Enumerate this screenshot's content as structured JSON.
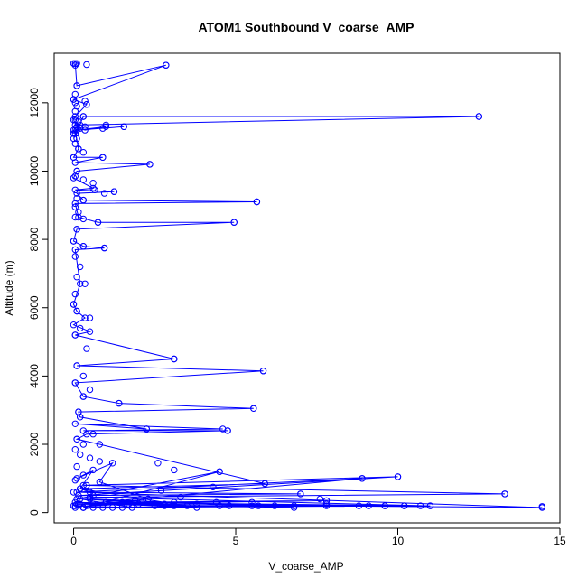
{
  "chart_data": {
    "type": "line",
    "title": "ATOM1 Southbound V_coarse_AMP",
    "xlabel": "V_coarse_AMP",
    "ylabel": "Altitude (m)",
    "xlim": [
      -0.6,
      15.0
    ],
    "ylim": [
      -300,
      13450
    ],
    "x_ticks": [
      0,
      5,
      10,
      15
    ],
    "x_tick_labels": [
      "0",
      "5",
      "10",
      "15"
    ],
    "y_ticks": [
      0,
      2000,
      4000,
      6000,
      8000,
      10000,
      12000
    ],
    "y_tick_labels": [
      "0",
      "2000",
      "4000",
      "6000",
      "8000",
      "10000",
      "12000"
    ],
    "grid": false,
    "legend": "none",
    "color": "#0000ff",
    "series": [
      {
        "x": [
          0.05,
          0.1,
          2.85,
          0.0,
          0.4,
          0.05,
          0.0,
          0.1,
          0.0,
          0.05,
          0.0,
          0.3,
          12.5,
          0.05,
          0.2,
          0.35,
          1.0,
          0.1,
          1.55,
          0.05,
          0.15,
          0.0,
          0.9,
          0.05,
          2.35,
          0.1,
          0.0,
          0.6,
          0.05,
          1.25,
          0.1,
          0.3,
          5.65,
          0.05,
          0.15,
          0.75,
          4.95,
          0.1,
          0.0,
          0.3,
          0.95,
          0.05,
          0.2,
          0.0,
          0.1,
          0.35,
          0.0,
          0.5,
          0.05,
          3.1,
          0.1,
          5.85,
          0.05,
          0.3,
          1.4,
          5.55,
          0.15,
          0.2,
          2.25,
          0.05,
          4.6,
          0.3,
          4.75,
          0.4,
          0.1,
          0.8,
          5.9,
          0.2,
          0.5,
          7.0,
          0.15,
          10.0,
          0.3,
          13.3,
          0.5,
          11.0,
          1.0,
          7.8,
          0.2,
          8.9,
          0.1,
          14.45,
          0.6,
          9.6,
          1.5,
          7.8,
          0.3,
          4.5,
          0.1,
          3.1,
          0.4,
          2.3,
          0.8,
          1.2,
          0.1,
          0.6,
          0.2,
          3.8,
          0.05,
          5.5,
          0.3,
          10.2,
          0.1,
          6.8,
          0.5,
          2.8,
          0.2,
          1.8,
          0.05
        ],
        "y": [
          13150,
          12500,
          13100,
          12100,
          11950,
          11600,
          11500,
          11300,
          11200,
          11100,
          10950,
          11600,
          11600,
          11350,
          11250,
          11200,
          11300,
          11200,
          11300,
          11200,
          10650,
          10400,
          10400,
          10250,
          10200,
          10000,
          9800,
          9500,
          9450,
          9400,
          9350,
          9150,
          9100,
          9050,
          8650,
          8500,
          8500,
          8300,
          7950,
          7800,
          7750,
          7700,
          6700,
          6100,
          5900,
          5700,
          5500,
          5300,
          5200,
          4500,
          4300,
          4150,
          3800,
          3400,
          3200,
          3050,
          2950,
          2800,
          2450,
          2600,
          2450,
          2400,
          2400,
          2300,
          2150,
          2000,
          850,
          700,
          600,
          550,
          500,
          1050,
          800,
          550,
          450,
          200,
          300,
          350,
          250,
          1000,
          600,
          150,
          250,
          200,
          300,
          200,
          150,
          1200,
          400,
          300,
          200,
          400,
          900,
          1450,
          1000,
          1250,
          700,
          150,
          300,
          200,
          150,
          200,
          250,
          150,
          400,
          250,
          400,
          150,
          200
        ]
      }
    ],
    "points": [
      {
        "x": 0.0,
        "y": 13150
      },
      {
        "x": 0.05,
        "y": 13100
      },
      {
        "x": 0.1,
        "y": 13150
      },
      {
        "x": 0.4,
        "y": 13120
      },
      {
        "x": 2.85,
        "y": 13100
      },
      {
        "x": 0.1,
        "y": 12500
      },
      {
        "x": 0.05,
        "y": 12250
      },
      {
        "x": 0.0,
        "y": 12100
      },
      {
        "x": 0.05,
        "y": 12000
      },
      {
        "x": 0.1,
        "y": 11900
      },
      {
        "x": 0.4,
        "y": 11950
      },
      {
        "x": 0.35,
        "y": 12050
      },
      {
        "x": 0.05,
        "y": 11750
      },
      {
        "x": 0.3,
        "y": 11600
      },
      {
        "x": 12.5,
        "y": 11600
      },
      {
        "x": 0.05,
        "y": 11500
      },
      {
        "x": 0.15,
        "y": 11450
      },
      {
        "x": 0.2,
        "y": 11350
      },
      {
        "x": 0.35,
        "y": 11300
      },
      {
        "x": 1.0,
        "y": 11350
      },
      {
        "x": 0.9,
        "y": 11250
      },
      {
        "x": 1.55,
        "y": 11300
      },
      {
        "x": 0.0,
        "y": 11100
      },
      {
        "x": 0.1,
        "y": 10950
      },
      {
        "x": 0.05,
        "y": 10800
      },
      {
        "x": 0.15,
        "y": 10650
      },
      {
        "x": 0.3,
        "y": 10550
      },
      {
        "x": 0.0,
        "y": 10400
      },
      {
        "x": 0.9,
        "y": 10400
      },
      {
        "x": 2.35,
        "y": 10200
      },
      {
        "x": 0.1,
        "y": 10000
      },
      {
        "x": 0.05,
        "y": 9850
      },
      {
        "x": 0.3,
        "y": 9750
      },
      {
        "x": 0.6,
        "y": 9650
      },
      {
        "x": 0.65,
        "y": 9450
      },
      {
        "x": 1.25,
        "y": 9400
      },
      {
        "x": 0.95,
        "y": 9350
      },
      {
        "x": 0.1,
        "y": 9200
      },
      {
        "x": 0.3,
        "y": 9150
      },
      {
        "x": 5.65,
        "y": 9100
      },
      {
        "x": 0.05,
        "y": 8950
      },
      {
        "x": 0.15,
        "y": 8800
      },
      {
        "x": 0.05,
        "y": 8650
      },
      {
        "x": 0.3,
        "y": 8600
      },
      {
        "x": 0.75,
        "y": 8500
      },
      {
        "x": 4.95,
        "y": 8500
      },
      {
        "x": 0.1,
        "y": 8300
      },
      {
        "x": 0.0,
        "y": 7950
      },
      {
        "x": 0.3,
        "y": 7800
      },
      {
        "x": 0.95,
        "y": 7750
      },
      {
        "x": 0.05,
        "y": 7500
      },
      {
        "x": 0.2,
        "y": 7200
      },
      {
        "x": 0.1,
        "y": 6900
      },
      {
        "x": 0.35,
        "y": 6700
      },
      {
        "x": 0.05,
        "y": 6400
      },
      {
        "x": 0.0,
        "y": 6100
      },
      {
        "x": 0.1,
        "y": 5900
      },
      {
        "x": 0.5,
        "y": 5700
      },
      {
        "x": 0.2,
        "y": 5400
      },
      {
        "x": 0.05,
        "y": 5200
      },
      {
        "x": 0.4,
        "y": 4800
      },
      {
        "x": 3.1,
        "y": 4500
      },
      {
        "x": 0.1,
        "y": 4300
      },
      {
        "x": 5.85,
        "y": 4150
      },
      {
        "x": 0.3,
        "y": 4000
      },
      {
        "x": 0.05,
        "y": 3800
      },
      {
        "x": 0.5,
        "y": 3600
      },
      {
        "x": 0.3,
        "y": 3400
      },
      {
        "x": 1.4,
        "y": 3200
      },
      {
        "x": 5.55,
        "y": 3050
      },
      {
        "x": 0.15,
        "y": 2950
      },
      {
        "x": 0.2,
        "y": 2800
      },
      {
        "x": 2.25,
        "y": 2450
      },
      {
        "x": 4.75,
        "y": 2400
      },
      {
        "x": 0.6,
        "y": 2300
      },
      {
        "x": 0.1,
        "y": 2150
      },
      {
        "x": 0.3,
        "y": 2000
      },
      {
        "x": 0.05,
        "y": 1850
      },
      {
        "x": 0.2,
        "y": 1700
      },
      {
        "x": 0.5,
        "y": 1600
      },
      {
        "x": 0.8,
        "y": 1500
      },
      {
        "x": 2.6,
        "y": 1450
      },
      {
        "x": 0.1,
        "y": 1350
      },
      {
        "x": 3.1,
        "y": 1250
      },
      {
        "x": 4.5,
        "y": 1200
      },
      {
        "x": 0.3,
        "y": 1100
      },
      {
        "x": 10.0,
        "y": 1050
      },
      {
        "x": 8.9,
        "y": 1000
      },
      {
        "x": 0.05,
        "y": 950
      },
      {
        "x": 5.9,
        "y": 850
      },
      {
        "x": 0.4,
        "y": 800
      },
      {
        "x": 4.3,
        "y": 750
      },
      {
        "x": 0.2,
        "y": 700
      },
      {
        "x": 2.7,
        "y": 650
      },
      {
        "x": 0.0,
        "y": 600
      },
      {
        "x": 13.3,
        "y": 550
      },
      {
        "x": 7.0,
        "y": 550
      },
      {
        "x": 0.6,
        "y": 500
      },
      {
        "x": 3.3,
        "y": 450
      },
      {
        "x": 7.6,
        "y": 400
      },
      {
        "x": 2.3,
        "y": 400
      },
      {
        "x": 7.8,
        "y": 350
      },
      {
        "x": 1.9,
        "y": 350
      },
      {
        "x": 5.5,
        "y": 300
      },
      {
        "x": 4.4,
        "y": 300
      },
      {
        "x": 1.0,
        "y": 300
      },
      {
        "x": 3.8,
        "y": 250
      },
      {
        "x": 0.15,
        "y": 250
      },
      {
        "x": 7.8,
        "y": 250
      },
      {
        "x": 2.0,
        "y": 250
      },
      {
        "x": 8.8,
        "y": 200
      },
      {
        "x": 9.1,
        "y": 200
      },
      {
        "x": 9.6,
        "y": 200
      },
      {
        "x": 10.2,
        "y": 200
      },
      {
        "x": 10.7,
        "y": 200
      },
      {
        "x": 11.0,
        "y": 200
      },
      {
        "x": 14.45,
        "y": 180
      },
      {
        "x": 6.8,
        "y": 200
      },
      {
        "x": 5.7,
        "y": 200
      },
      {
        "x": 4.8,
        "y": 200
      },
      {
        "x": 4.5,
        "y": 200
      },
      {
        "x": 3.5,
        "y": 200
      },
      {
        "x": 3.1,
        "y": 200
      },
      {
        "x": 2.8,
        "y": 200
      },
      {
        "x": 2.5,
        "y": 200
      },
      {
        "x": 1.5,
        "y": 150
      },
      {
        "x": 1.2,
        "y": 150
      },
      {
        "x": 0.9,
        "y": 150
      },
      {
        "x": 0.6,
        "y": 150
      },
      {
        "x": 0.3,
        "y": 150
      },
      {
        "x": 0.0,
        "y": 200
      },
      {
        "x": 0.05,
        "y": 150
      },
      {
        "x": 1.7,
        "y": 250
      },
      {
        "x": 2.1,
        "y": 300
      },
      {
        "x": 6.2,
        "y": 200
      }
    ]
  }
}
